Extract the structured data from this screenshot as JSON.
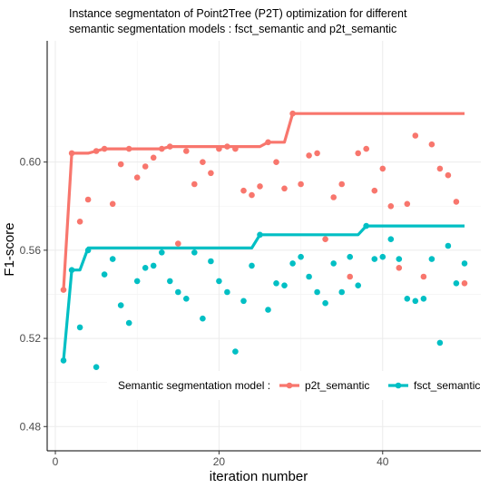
{
  "chart_data": {
    "type": "line+scatter",
    "title_lines": [
      "Instance segmentaton of Point2Tree (P2T) optimization for different",
      "semantic segmentation models : fsct_semantic and p2t_semantic"
    ],
    "xlabel": "iteration number",
    "ylabel": "F1-score",
    "xlim": [
      -1,
      52
    ],
    "ylim": [
      0.469,
      0.655
    ],
    "xticks": [
      0,
      20,
      40
    ],
    "yticks": [
      0.48,
      0.52,
      0.56,
      0.6
    ],
    "ytick_labels": [
      "0.48",
      "0.52",
      "0.56",
      "0.60"
    ],
    "grid": true,
    "legend": {
      "title": "Semantic segmentation model :",
      "position": "inside-bottom"
    },
    "series": [
      {
        "name": "p2t_semantic",
        "color": "#F8766D",
        "points": [
          [
            1,
            0.542
          ],
          [
            2,
            0.604
          ],
          [
            3,
            0.573
          ],
          [
            4,
            0.583
          ],
          [
            5,
            0.605
          ],
          [
            6,
            0.606
          ],
          [
            7,
            0.581
          ],
          [
            8,
            0.599
          ],
          [
            9,
            0.606
          ],
          [
            10,
            0.593
          ],
          [
            11,
            0.598
          ],
          [
            12,
            0.602
          ],
          [
            13,
            0.606
          ],
          [
            14,
            0.607
          ],
          [
            15,
            0.563
          ],
          [
            16,
            0.605
          ],
          [
            17,
            0.59
          ],
          [
            18,
            0.6
          ],
          [
            19,
            0.595
          ],
          [
            20,
            0.606
          ],
          [
            21,
            0.607
          ],
          [
            22,
            0.606
          ],
          [
            23,
            0.587
          ],
          [
            24,
            0.585
          ],
          [
            25,
            0.589
          ],
          [
            26,
            0.609
          ],
          [
            27,
            0.6
          ],
          [
            28,
            0.588
          ],
          [
            29,
            0.622
          ],
          [
            30,
            0.59
          ],
          [
            31,
            0.603
          ],
          [
            32,
            0.604
          ],
          [
            33,
            0.565
          ],
          [
            34,
            0.584
          ],
          [
            35,
            0.59
          ],
          [
            36,
            0.548
          ],
          [
            37,
            0.604
          ],
          [
            38,
            0.606
          ],
          [
            39,
            0.587
          ],
          [
            40,
            0.597
          ],
          [
            41,
            0.58
          ],
          [
            42,
            0.552
          ],
          [
            43,
            0.581
          ],
          [
            44,
            0.612
          ],
          [
            45,
            0.548
          ],
          [
            46,
            0.608
          ],
          [
            47,
            0.597
          ],
          [
            48,
            0.594
          ],
          [
            49,
            0.582
          ],
          [
            50,
            0.545
          ]
        ],
        "best_so_far": [
          [
            1,
            0.542
          ],
          [
            2,
            0.604
          ],
          [
            4,
            0.604
          ],
          [
            5,
            0.605
          ],
          [
            6,
            0.606
          ],
          [
            13,
            0.606
          ],
          [
            14,
            0.607
          ],
          [
            25,
            0.607
          ],
          [
            26,
            0.609
          ],
          [
            28,
            0.609
          ],
          [
            29,
            0.622
          ],
          [
            50,
            0.622
          ]
        ]
      },
      {
        "name": "fsct_semantic",
        "color": "#00BFC4",
        "points": [
          [
            1,
            0.51
          ],
          [
            2,
            0.551
          ],
          [
            3,
            0.525
          ],
          [
            4,
            0.56
          ],
          [
            5,
            0.507
          ],
          [
            6,
            0.549
          ],
          [
            7,
            0.556
          ],
          [
            8,
            0.535
          ],
          [
            9,
            0.527
          ],
          [
            10,
            0.546
          ],
          [
            11,
            0.552
          ],
          [
            12,
            0.553
          ],
          [
            13,
            0.559
          ],
          [
            14,
            0.546
          ],
          [
            15,
            0.541
          ],
          [
            16,
            0.538
          ],
          [
            17,
            0.559
          ],
          [
            18,
            0.529
          ],
          [
            19,
            0.555
          ],
          [
            20,
            0.546
          ],
          [
            21,
            0.541
          ],
          [
            22,
            0.514
          ],
          [
            23,
            0.537
          ],
          [
            24,
            0.553
          ],
          [
            25,
            0.567
          ],
          [
            26,
            0.533
          ],
          [
            27,
            0.545
          ],
          [
            28,
            0.544
          ],
          [
            29,
            0.554
          ],
          [
            30,
            0.557
          ],
          [
            31,
            0.548
          ],
          [
            32,
            0.541
          ],
          [
            33,
            0.536
          ],
          [
            34,
            0.554
          ],
          [
            35,
            0.541
          ],
          [
            36,
            0.557
          ],
          [
            37,
            0.544
          ],
          [
            38,
            0.571
          ],
          [
            39,
            0.556
          ],
          [
            40,
            0.557
          ],
          [
            41,
            0.565
          ],
          [
            42,
            0.556
          ],
          [
            43,
            0.538
          ],
          [
            44,
            0.537
          ],
          [
            45,
            0.538
          ],
          [
            46,
            0.556
          ],
          [
            47,
            0.518
          ],
          [
            48,
            0.562
          ],
          [
            49,
            0.545
          ],
          [
            50,
            0.554
          ]
        ],
        "best_so_far": [
          [
            1,
            0.51
          ],
          [
            2,
            0.551
          ],
          [
            3,
            0.551
          ],
          [
            4,
            0.561
          ],
          [
            24,
            0.561
          ],
          [
            25,
            0.567
          ],
          [
            37,
            0.567
          ],
          [
            38,
            0.571
          ],
          [
            50,
            0.571
          ]
        ]
      }
    ]
  }
}
